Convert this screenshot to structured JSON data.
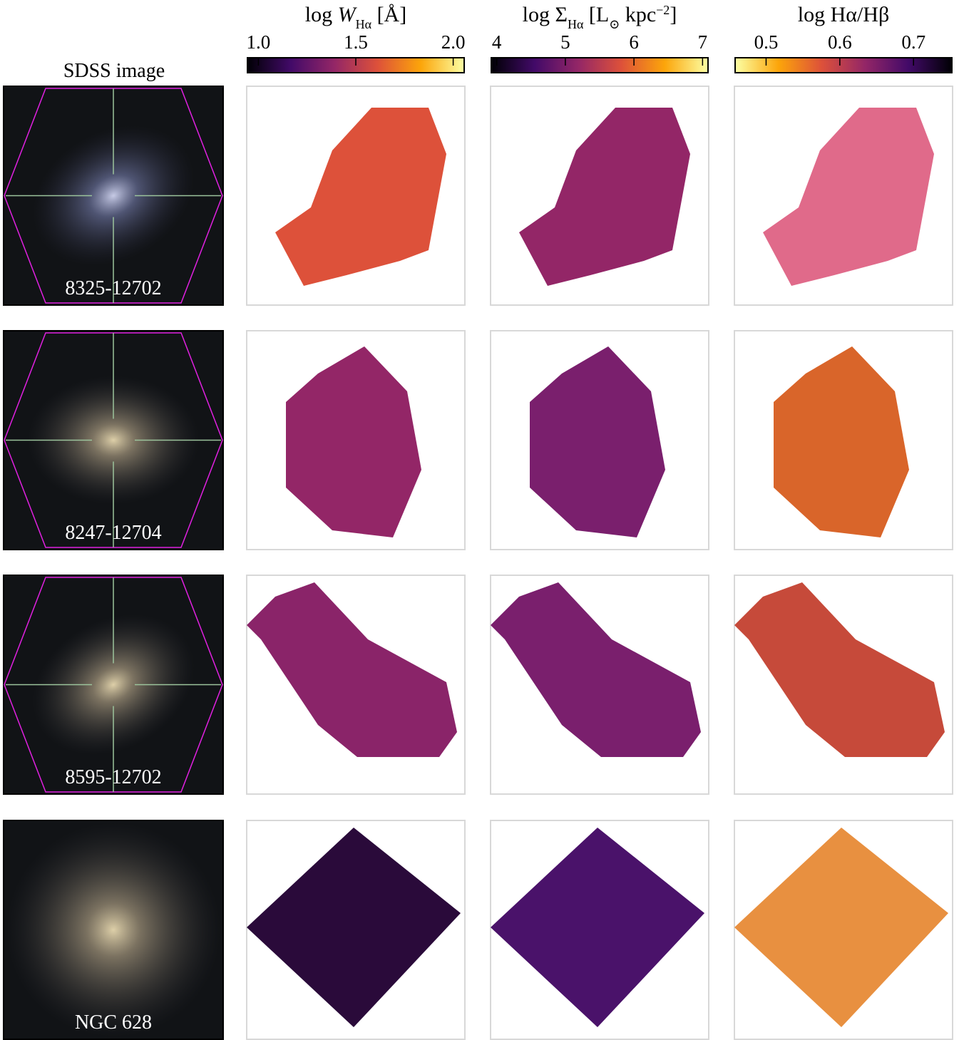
{
  "figure": {
    "image_column_title": "SDSS image",
    "colorbars": [
      {
        "title_parts": [
          {
            "text": "log "
          },
          {
            "text": "W",
            "style": "italic"
          },
          {
            "text": "Hα",
            "style": "sub"
          },
          {
            "text": " [Å]"
          }
        ],
        "lim": [
          0.94,
          2.06
        ],
        "ticks": [
          {
            "value": 1,
            "label": "1.0"
          },
          1.5,
          {
            "value": 2,
            "label": "2.0"
          }
        ],
        "colormap": "inferno",
        "reversed": false
      },
      {
        "title_parts": [
          {
            "text": "log Σ"
          },
          {
            "text": "Hα",
            "style": "sub"
          },
          {
            "text": " [L"
          },
          {
            "text": "⊙",
            "style": "sub"
          },
          {
            "text": " kpc"
          },
          {
            "text": "−2",
            "style": "sup"
          },
          {
            "text": "]"
          }
        ],
        "lim": [
          3.91,
          7.09
        ],
        "ticks": [
          4,
          5,
          6,
          7
        ],
        "colormap": "inferno",
        "reversed": false
      },
      {
        "title_parts": [
          {
            "text": "log Hα/Hβ"
          }
        ],
        "lim": [
          0.457,
          0.753
        ],
        "ticks": [
          0.5,
          0.6,
          0.7
        ],
        "colormap": "inferno",
        "reversed": true
      }
    ],
    "galaxies": [
      "8325-12702",
      "8247-12704",
      "8595-12702",
      "NGC 628"
    ]
  }
}
